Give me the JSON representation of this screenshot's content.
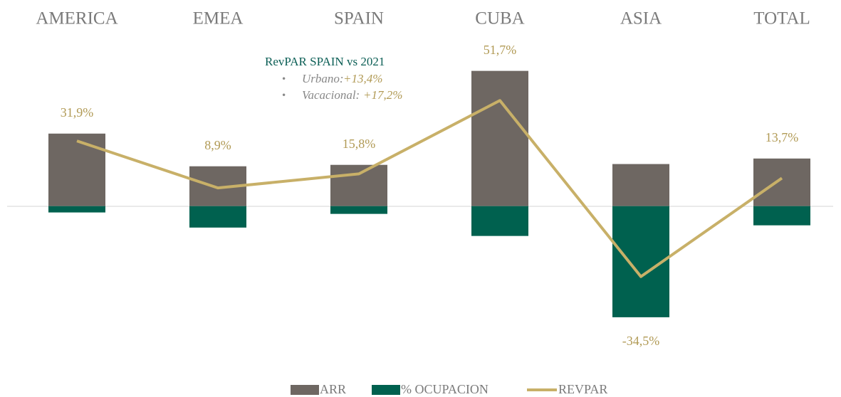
{
  "chart_data": {
    "type": "bar_line",
    "categories": [
      "AMERICA",
      "EMEA",
      "SPAIN",
      "CUBA",
      "ASIA",
      "TOTAL"
    ],
    "series": [
      {
        "name": "ARR",
        "type": "bar",
        "color": "#6e6762",
        "values": [
          35.5,
          19.5,
          20.2,
          66.2,
          20.6,
          23.3
        ]
      },
      {
        "name": "% OCUPACION",
        "type": "bar",
        "color": "#00614f",
        "values": [
          -3.1,
          -10.5,
          -3.8,
          -14.6,
          -54.4,
          -9.4
        ]
      },
      {
        "name": "REVPAR",
        "type": "line",
        "color": "#c8b068",
        "values": [
          31.9,
          8.9,
          15.8,
          51.7,
          -34.5,
          13.7
        ],
        "value_labels": [
          "31,9%",
          "8,9%",
          "15,8%",
          "51,7%",
          "-34,5%",
          "13,7%"
        ]
      }
    ],
    "ylim": [
      -60,
      80
    ],
    "annotation": {
      "title": "RevPAR SPAIN vs 2021",
      "items": [
        {
          "label": "Urbano:",
          "value": "+13,4%"
        },
        {
          "label": "Vacacional:",
          "value": "+17,2%"
        }
      ]
    }
  }
}
